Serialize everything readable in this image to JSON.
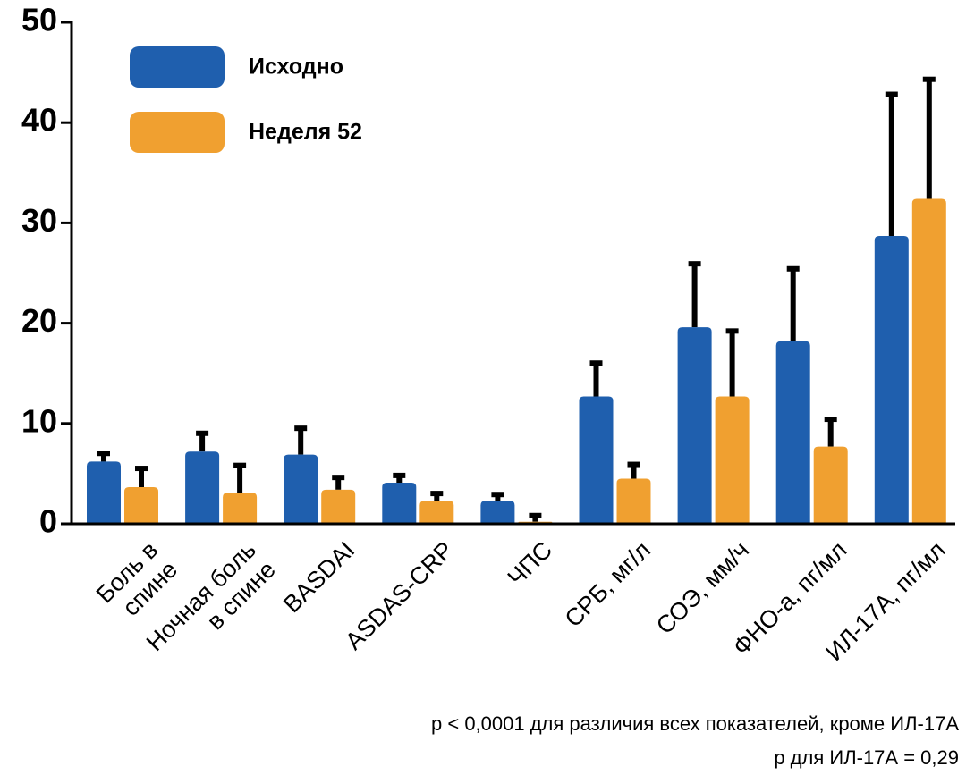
{
  "chart_data": {
    "type": "bar",
    "categories": [
      "Боль в спине",
      "Ночная боль\nв спине",
      "BASDAI",
      "ASDAS-CRP",
      "ЧПС",
      "СРБ, мг/л",
      "СОЭ, мм/ч",
      "ФНО-а, пг/мл",
      "ИЛ-17А, пг/мл"
    ],
    "series": [
      {
        "name": "Исходно",
        "color": "#1f5fae",
        "values": [
          6.2,
          7.2,
          6.9,
          4.1,
          2.3,
          12.7,
          19.6,
          18.2,
          28.7
        ],
        "errors": [
          1.0,
          2.0,
          2.8,
          0.9,
          0.8,
          3.5,
          6.5,
          7.4,
          14.3
        ]
      },
      {
        "name": "Неделя 52",
        "color": "#f0a030",
        "values": [
          3.65,
          3.1,
          3.4,
          2.3,
          0.2,
          4.5,
          12.7,
          7.7,
          32.4
        ],
        "errors": [
          2.05,
          2.9,
          1.4,
          0.9,
          0.8,
          1.6,
          6.7,
          2.9,
          12.1
        ]
      }
    ],
    "ylim": [
      0,
      50
    ],
    "yticks": [
      0,
      10,
      20,
      30,
      40,
      50
    ],
    "notes": [
      "p < 0,0001 для различия всех показателей, кроме ИЛ-17А",
      "p для ИЛ-17А = 0,29"
    ]
  }
}
